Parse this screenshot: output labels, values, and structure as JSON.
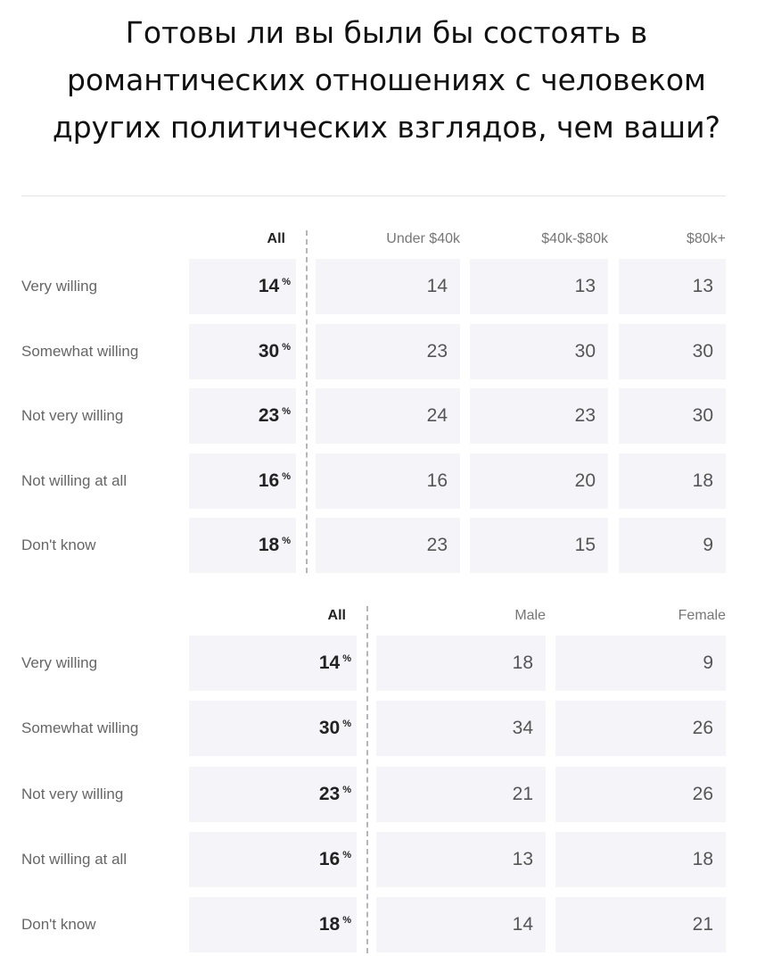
{
  "title": "Готовы ли вы были бы состоять в\nромантических отношениях с человеком\nдругих политических взглядов, чем ваши?",
  "chart_data": [
    {
      "type": "table",
      "columns": [
        "All",
        "Under $40k",
        "$40k-$80k",
        "$80k+"
      ],
      "rows": [
        "Very willing",
        "Somewhat willing",
        "Not very willing",
        "Not willing at all",
        "Don't know"
      ],
      "unit": "%",
      "values": [
        [
          14,
          14,
          13,
          13
        ],
        [
          30,
          23,
          30,
          30
        ],
        [
          23,
          24,
          23,
          30
        ],
        [
          16,
          16,
          20,
          18
        ],
        [
          18,
          23,
          15,
          9
        ]
      ]
    },
    {
      "type": "table",
      "columns": [
        "All",
        "Male",
        "Female"
      ],
      "rows": [
        "Very willing",
        "Somewhat willing",
        "Not very willing",
        "Not willing at all",
        "Don't know"
      ],
      "unit": "%",
      "values": [
        [
          14,
          18,
          9
        ],
        [
          30,
          34,
          26
        ],
        [
          23,
          21,
          26
        ],
        [
          16,
          13,
          18
        ],
        [
          18,
          14,
          21
        ]
      ]
    }
  ]
}
